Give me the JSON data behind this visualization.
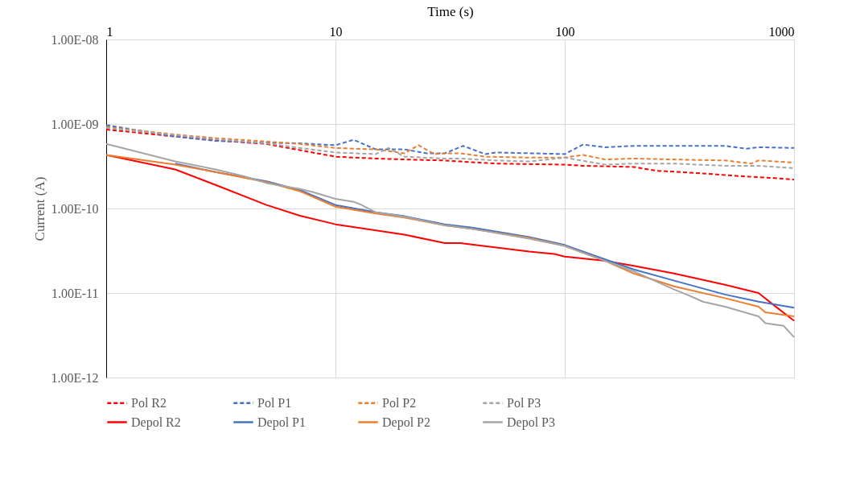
{
  "chart_data": {
    "type": "line",
    "xlabel": "Time (s)",
    "ylabel": "Current (A)",
    "log": "xy",
    "grid": true,
    "legend": "bottom",
    "marker": "none",
    "xlim": [
      1,
      1000
    ],
    "xticks": [
      1,
      10,
      100,
      1000
    ],
    "ylim": [
      1e-12,
      1e-08
    ],
    "yticks": [
      {
        "value": 1e-08,
        "label": "1.00E-08"
      },
      {
        "value": 1e-09,
        "label": "1.00E-09"
      },
      {
        "value": 1e-10,
        "label": "1.00E-10"
      },
      {
        "value": 1e-11,
        "label": "1.00E-11"
      },
      {
        "value": 1e-12,
        "label": "1.00E-12"
      }
    ],
    "series": [
      {
        "name": "Pol R2",
        "color": "#ff0000",
        "line_style": "dashed",
        "x": [
          1,
          2,
          3,
          5,
          7,
          10,
          15,
          20,
          30,
          35,
          50,
          100,
          120,
          200,
          250,
          400,
          600,
          800,
          1000
        ],
        "values": [
          8.6e-10,
          7.1e-10,
          6.4e-10,
          5.8e-10,
          4.9e-10,
          4.1e-10,
          3.9e-10,
          3.8e-10,
          3.7e-10,
          3.6e-10,
          3.4e-10,
          3.3e-10,
          3.2e-10,
          3.1e-10,
          2.8e-10,
          2.6e-10,
          2.4e-10,
          2.3e-10,
          2.2e-10
        ]
      },
      {
        "name": "Pol P1",
        "color": "#4472c4",
        "line_style": "dashed",
        "x": [
          1,
          2,
          3,
          5,
          7,
          10,
          12,
          15,
          20,
          25,
          30,
          36,
          45,
          50,
          70,
          100,
          120,
          150,
          200,
          300,
          500,
          620,
          700,
          1000
        ],
        "values": [
          9.7e-10,
          7.1e-10,
          6.3e-10,
          6e-10,
          5.9e-10,
          5.6e-10,
          6.5e-10,
          5e-10,
          5e-10,
          4.5e-10,
          4.5e-10,
          5.5e-10,
          4.4e-10,
          4.6e-10,
          4.5e-10,
          4.4e-10,
          5.7e-10,
          5.3e-10,
          5.5e-10,
          5.5e-10,
          5.5e-10,
          5.1e-10,
          5.3e-10,
          5.2e-10
        ]
      },
      {
        "name": "Pol P2",
        "color": "#ed7d31",
        "line_style": "dashed",
        "x": [
          1,
          2,
          3,
          5,
          7,
          10,
          15,
          20,
          23,
          27,
          30,
          35,
          45,
          70,
          100,
          120,
          150,
          200,
          300,
          500,
          650,
          700,
          1000
        ],
        "values": [
          9.2e-10,
          7.5e-10,
          6.8e-10,
          6.2e-10,
          5.8e-10,
          5.2e-10,
          5e-10,
          4.5e-10,
          5.6e-10,
          4.4e-10,
          4.5e-10,
          4.5e-10,
          4.1e-10,
          4e-10,
          4e-10,
          4.3e-10,
          3.8e-10,
          3.9e-10,
          3.8e-10,
          3.7e-10,
          3.4e-10,
          3.7e-10,
          3.5e-10
        ]
      },
      {
        "name": "Pol P3",
        "color": "#a5a5a5",
        "line_style": "dashed",
        "x": [
          1,
          2,
          3,
          5,
          7,
          10,
          15,
          17,
          20,
          30,
          35,
          50,
          70,
          100,
          150,
          200,
          300,
          500,
          700,
          1000
        ],
        "values": [
          9e-10,
          7.4e-10,
          6.6e-10,
          5.9e-10,
          5.2e-10,
          4.6e-10,
          4.4e-10,
          5.2e-10,
          4.1e-10,
          3.9e-10,
          3.9e-10,
          3.7e-10,
          3.6e-10,
          4e-10,
          3.3e-10,
          3.4e-10,
          3.4e-10,
          3.2e-10,
          3.2e-10,
          3e-10
        ]
      },
      {
        "name": "Depol R2",
        "color": "#ff0000",
        "line_style": "solid",
        "x": [
          1,
          2,
          3,
          5,
          7,
          10,
          20,
          30,
          35,
          70,
          90,
          100,
          150,
          200,
          300,
          500,
          700,
          800,
          1000
        ],
        "values": [
          4.3e-10,
          2.9e-10,
          1.9e-10,
          1.1e-10,
          8.2e-11,
          6.5e-11,
          4.9e-11,
          3.9e-11,
          3.9e-11,
          3.1e-11,
          2.9e-11,
          2.7e-11,
          2.4e-11,
          2.1e-11,
          1.7e-11,
          1.25e-11,
          1e-11,
          7.5e-12,
          4.7e-12
        ]
      },
      {
        "name": "Depol P1",
        "color": "#4472c4",
        "line_style": "solid",
        "x": [
          2,
          3,
          5,
          7,
          10,
          15,
          20,
          30,
          40,
          70,
          100,
          150,
          200,
          300,
          500,
          700,
          1000
        ],
        "values": [
          3.4e-10,
          2.7e-10,
          2.1e-10,
          1.65e-10,
          1.1e-10,
          9e-11,
          8.1e-11,
          6.5e-11,
          5.9e-11,
          4.6e-11,
          3.7e-11,
          2.5e-11,
          1.9e-11,
          1.4e-11,
          9.6e-12,
          7.9e-12,
          6.7e-12
        ]
      },
      {
        "name": "Depol P2",
        "color": "#ed7d31",
        "line_style": "solid",
        "x": [
          1,
          2,
          3,
          5,
          7,
          10,
          15,
          20,
          30,
          40,
          70,
          100,
          150,
          200,
          300,
          500,
          700,
          750,
          1000
        ],
        "values": [
          4.3e-10,
          3.3e-10,
          2.7e-10,
          2.05e-10,
          1.6e-10,
          1.05e-10,
          8.7e-11,
          7.8e-11,
          6.3e-11,
          5.7e-11,
          4.5e-11,
          3.6e-11,
          2.4e-11,
          1.7e-11,
          1.2e-11,
          8.7e-12,
          6.9e-12,
          5.9e-12,
          5.3e-12
        ]
      },
      {
        "name": "Depol P3",
        "color": "#a5a5a5",
        "line_style": "solid",
        "x": [
          1,
          2,
          3,
          4,
          5,
          7,
          8,
          10,
          12,
          13,
          15,
          20,
          30,
          40,
          70,
          100,
          150,
          200,
          300,
          350,
          400,
          500,
          700,
          750,
          900,
          1000
        ],
        "values": [
          5.8e-10,
          3.6e-10,
          2.9e-10,
          2.4e-10,
          2e-10,
          1.7e-10,
          1.56e-10,
          1.3e-10,
          1.2e-10,
          1.1e-10,
          9e-11,
          8e-11,
          6.3e-11,
          5.7e-11,
          4.4e-11,
          3.6e-11,
          2.4e-11,
          1.8e-11,
          1.1e-11,
          9.3e-12,
          7.9e-12,
          6.9e-12,
          5.3e-12,
          4.4e-12,
          4.1e-12,
          3e-12
        ]
      }
    ]
  }
}
